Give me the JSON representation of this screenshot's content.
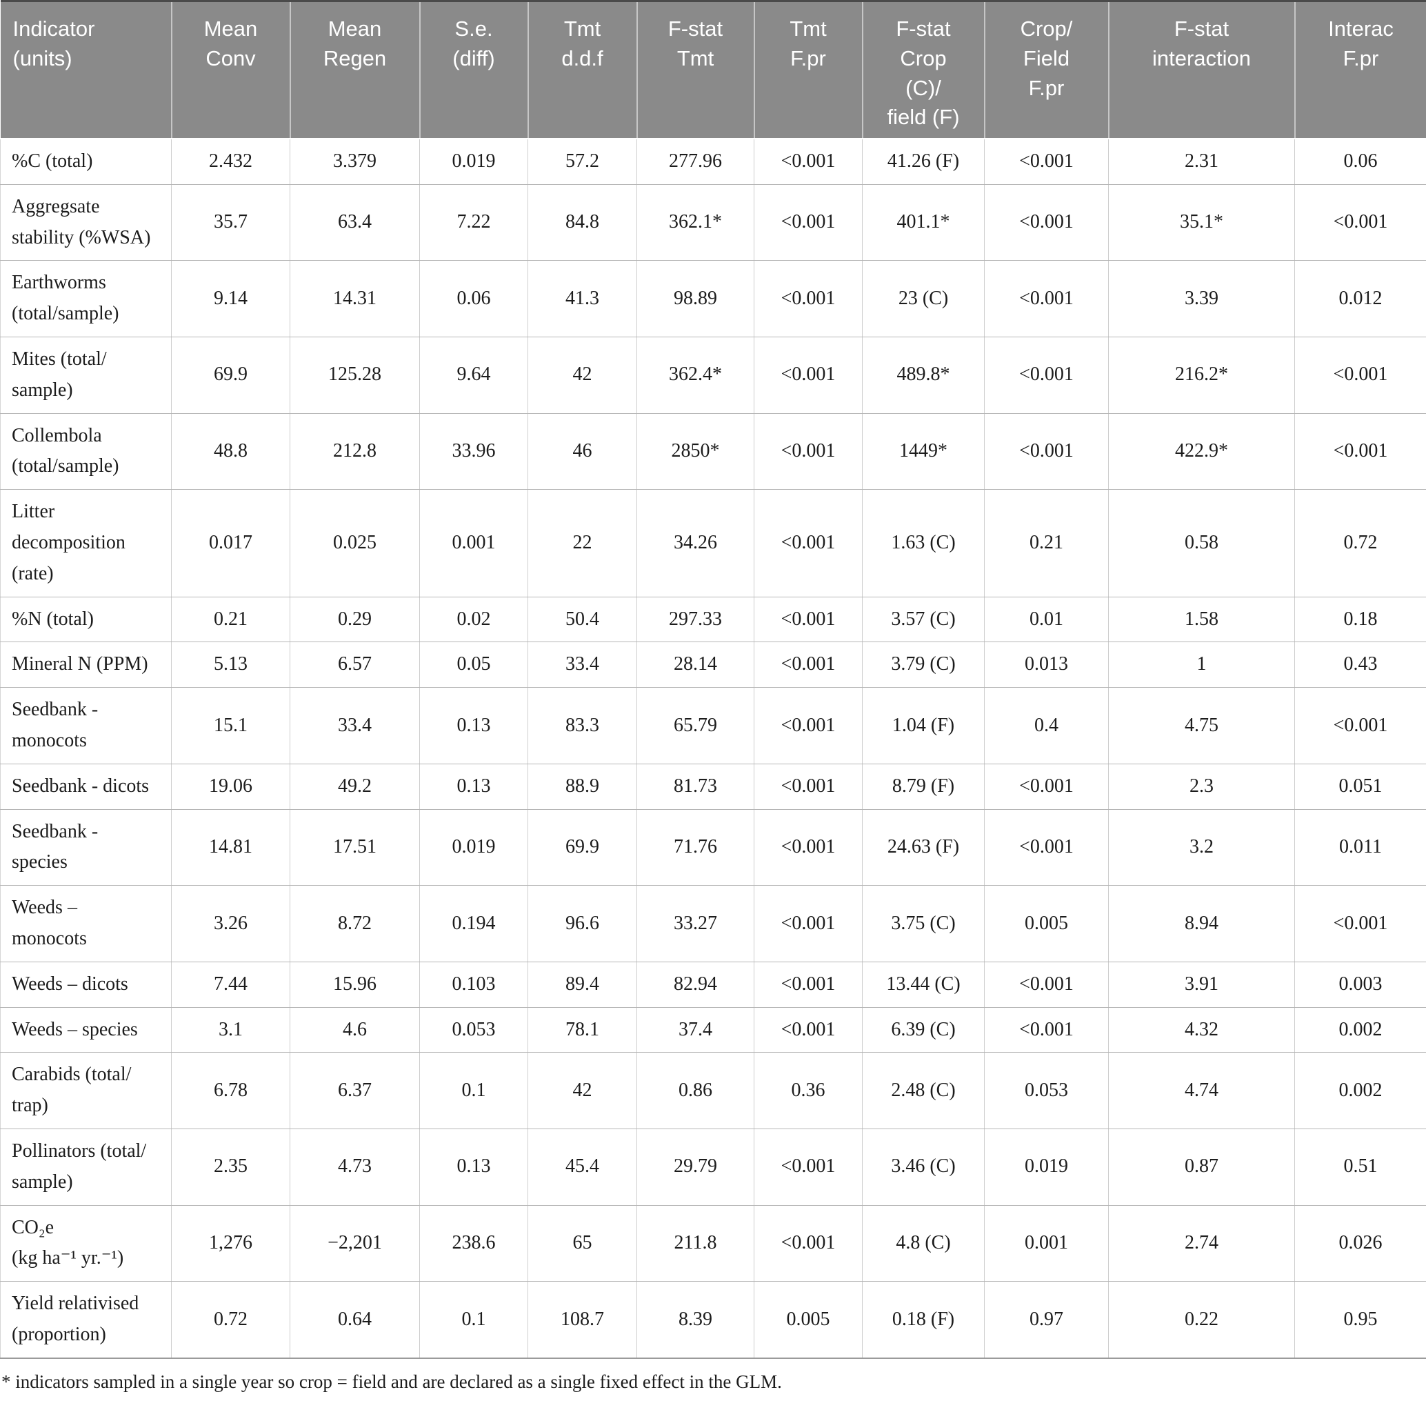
{
  "colors": {
    "header_bg": "#8a8a8a",
    "header_text": "#ffffff",
    "body_text": "#1c1c1c",
    "grid_line": "#c0c0c0"
  },
  "table": {
    "columns": [
      "Indicator\n(units)",
      "Mean\nConv",
      "Mean\nRegen",
      "S.e.\n(diff)",
      "Tmt\nd.d.f",
      "F-stat\nTmt",
      "Tmt\nF.pr",
      "F-stat\nCrop\n(C)/\nfield (F)",
      "Crop/\nField\nF.pr",
      "F-stat\ninteraction",
      "Interac\nF.pr"
    ],
    "rows": [
      {
        "indicator": "%C (total)",
        "values": [
          "2.432",
          "3.379",
          "0.019",
          "57.2",
          "277.96",
          "<0.001",
          "41.26 (F)",
          "<0.001",
          "2.31",
          "0.06"
        ]
      },
      {
        "indicator": "Aggregsate\nstability (%WSA)",
        "values": [
          "35.7",
          "63.4",
          "7.22",
          "84.8",
          "362.1*",
          "<0.001",
          "401.1*",
          "<0.001",
          "35.1*",
          "<0.001"
        ]
      },
      {
        "indicator": "Earthworms\n(total/sample)",
        "values": [
          "9.14",
          "14.31",
          "0.06",
          "41.3",
          "98.89",
          "<0.001",
          "23 (C)",
          "<0.001",
          "3.39",
          "0.012"
        ]
      },
      {
        "indicator": "Mites (total/\nsample)",
        "values": [
          "69.9",
          "125.28",
          "9.64",
          "42",
          "362.4*",
          "<0.001",
          "489.8*",
          "<0.001",
          "216.2*",
          "<0.001"
        ]
      },
      {
        "indicator": "Collembola\n(total/sample)",
        "values": [
          "48.8",
          "212.8",
          "33.96",
          "46",
          "2850*",
          "<0.001",
          "1449*",
          "<0.001",
          "422.9*",
          "<0.001"
        ]
      },
      {
        "indicator": "Litter\ndecomposition\n(rate)",
        "values": [
          "0.017",
          "0.025",
          "0.001",
          "22",
          "34.26",
          "<0.001",
          "1.63 (C)",
          "0.21",
          "0.58",
          "0.72"
        ]
      },
      {
        "indicator": "%N (total)",
        "values": [
          "0.21",
          "0.29",
          "0.02",
          "50.4",
          "297.33",
          "<0.001",
          "3.57 (C)",
          "0.01",
          "1.58",
          "0.18"
        ]
      },
      {
        "indicator": "Mineral N (PPM)",
        "values": [
          "5.13",
          "6.57",
          "0.05",
          "33.4",
          "28.14",
          "<0.001",
          "3.79 (C)",
          "0.013",
          "1",
          "0.43"
        ]
      },
      {
        "indicator": "Seedbank -\nmonocots",
        "values": [
          "15.1",
          "33.4",
          "0.13",
          "83.3",
          "65.79",
          "<0.001",
          "1.04 (F)",
          "0.4",
          "4.75",
          "<0.001"
        ]
      },
      {
        "indicator": "Seedbank - dicots",
        "values": [
          "19.06",
          "49.2",
          "0.13",
          "88.9",
          "81.73",
          "<0.001",
          "8.79 (F)",
          "<0.001",
          "2.3",
          "0.051"
        ]
      },
      {
        "indicator": "Seedbank -\nspecies",
        "values": [
          "14.81",
          "17.51",
          "0.019",
          "69.9",
          "71.76",
          "<0.001",
          "24.63 (F)",
          "<0.001",
          "3.2",
          "0.011"
        ]
      },
      {
        "indicator": "Weeds –\nmonocots",
        "values": [
          "3.26",
          "8.72",
          "0.194",
          "96.6",
          "33.27",
          "<0.001",
          "3.75 (C)",
          "0.005",
          "8.94",
          "<0.001"
        ]
      },
      {
        "indicator": "Weeds – dicots",
        "values": [
          "7.44",
          "15.96",
          "0.103",
          "89.4",
          "82.94",
          "<0.001",
          "13.44 (C)",
          "<0.001",
          "3.91",
          "0.003"
        ]
      },
      {
        "indicator": "Weeds – species",
        "values": [
          "3.1",
          "4.6",
          "0.053",
          "78.1",
          "37.4",
          "<0.001",
          "6.39 (C)",
          "<0.001",
          "4.32",
          "0.002"
        ]
      },
      {
        "indicator": "Carabids (total/\ntrap)",
        "values": [
          "6.78",
          "6.37",
          "0.1",
          "42",
          "0.86",
          "0.36",
          "2.48 (C)",
          "0.053",
          "4.74",
          "0.002"
        ]
      },
      {
        "indicator": "Pollinators (total/\nsample)",
        "values": [
          "2.35",
          "4.73",
          "0.13",
          "45.4",
          "29.79",
          "<0.001",
          "3.46 (C)",
          "0.019",
          "0.87",
          "0.51"
        ]
      },
      {
        "indicator": "CO₂e\n(kg ha⁻¹ yr.⁻¹)",
        "values": [
          "1,276",
          "−2,201",
          "238.6",
          "65",
          "211.8",
          "<0.001",
          "4.8 (C)",
          "0.001",
          "2.74",
          "0.026"
        ]
      },
      {
        "indicator": "Yield relativised\n(proportion)",
        "values": [
          "0.72",
          "0.64",
          "0.1",
          "108.7",
          "8.39",
          "0.005",
          "0.18 (F)",
          "0.97",
          "0.22",
          "0.95"
        ]
      }
    ],
    "footnote": "* indicators sampled in a single year so crop = field and are declared as a single fixed effect in the GLM."
  }
}
